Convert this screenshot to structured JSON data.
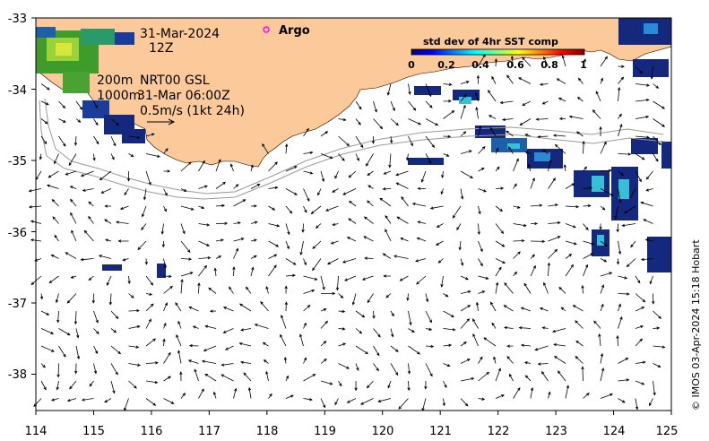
{
  "map": {
    "date_label": "31-Mar-2024",
    "time_label": "12Z",
    "argo_label": "Argo",
    "contour_label_200": "200m",
    "contour_label_1000": "1000m",
    "product_label": "NRT00 GSL",
    "product_time": "31-Mar 06:00Z",
    "scale_label": "0.5m/s (1kt 24h)",
    "credit": "© IMOS 03-Apr-2024 15:18 Hobart",
    "colors": {
      "land": "#fcc99a",
      "ocean": "#ffffff",
      "arrow": "#000000",
      "isobath": "#9a9a9a",
      "argo_marker": "#ff00ff"
    }
  },
  "colorbar": {
    "title": "std dev of 4hr SST comp",
    "ticks": [
      "0",
      "0.2",
      "0.4",
      "0.6",
      "0.8",
      "1"
    ],
    "range": [
      0,
      1
    ],
    "colormap": "jet"
  },
  "axes": {
    "x_ticks": [
      "114",
      "115",
      "116",
      "117",
      "118",
      "119",
      "120",
      "121",
      "122",
      "123",
      "124",
      "125"
    ],
    "y_ticks": [
      "-33",
      "-34",
      "-35",
      "-36",
      "-37",
      "-38"
    ],
    "lon_range": [
      114,
      125
    ],
    "lat_range": [
      -38.5,
      -33
    ]
  }
}
